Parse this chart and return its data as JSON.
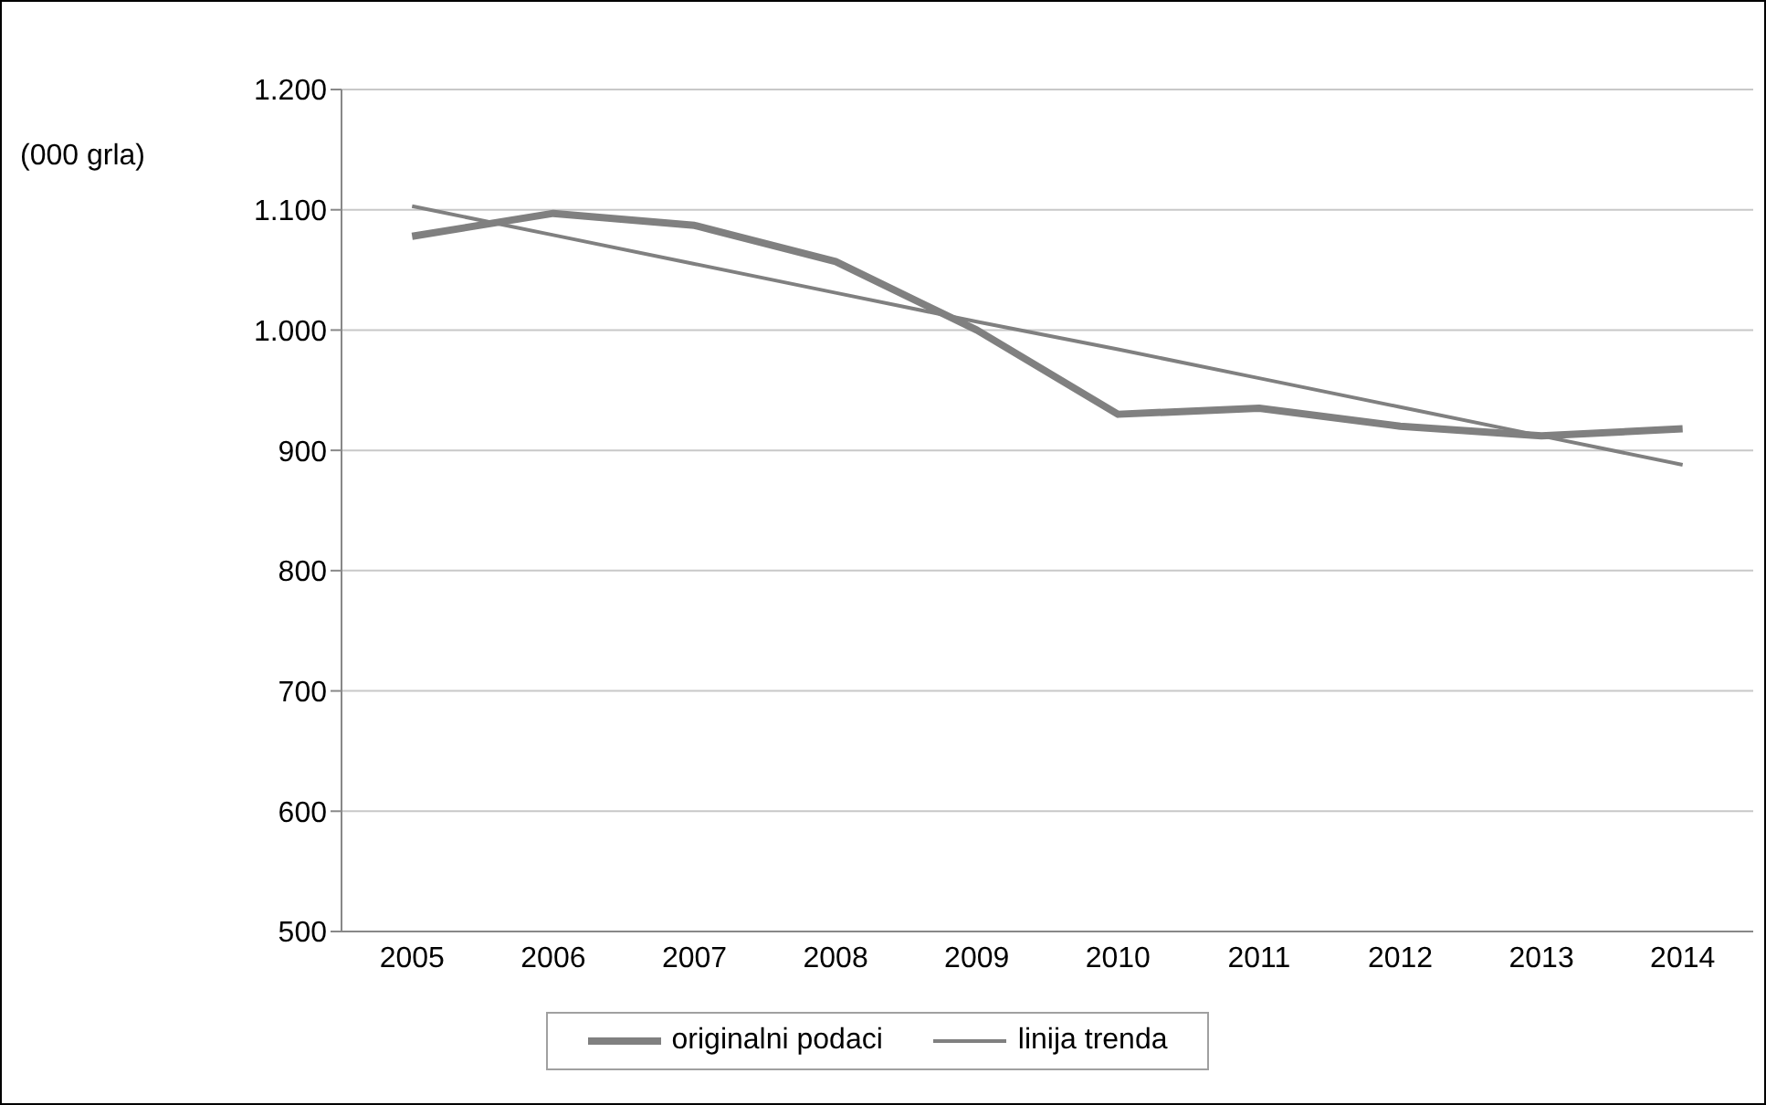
{
  "chart_data": {
    "type": "line",
    "ylabel": "(000 grla)",
    "categories": [
      "2005",
      "2006",
      "2007",
      "2008",
      "2009",
      "2010",
      "2011",
      "2012",
      "2013",
      "2014"
    ],
    "series": [
      {
        "name": "originalni podaci",
        "color": "#808080",
        "values": [
          1078,
          1097,
          1087,
          1057,
          1000,
          930,
          935,
          920,
          912,
          918
        ]
      },
      {
        "name": "linija trenda",
        "color": "#808080",
        "values": [
          1103,
          1079,
          1055,
          1031,
          1007,
          984,
          960,
          936,
          912,
          888
        ]
      }
    ],
    "ylim": [
      500,
      1200
    ],
    "yticks": [
      500,
      600,
      700,
      800,
      900,
      {
        "value": 1000,
        "label": "1.000"
      },
      {
        "value": 1100,
        "label": "1.100"
      },
      {
        "value": 1200,
        "label": "1.200"
      }
    ],
    "grid": "y",
    "legend": "bottom",
    "marker": "none",
    "line_style": "solid"
  }
}
